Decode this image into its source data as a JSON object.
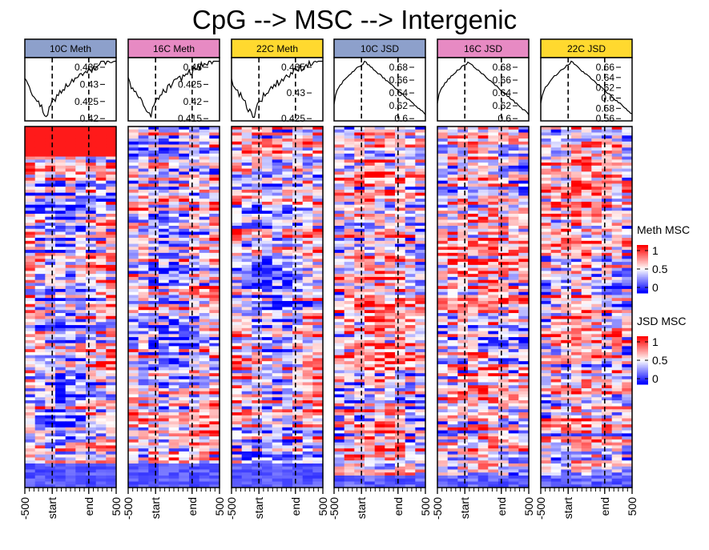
{
  "chart_data": {
    "type": "heatmap",
    "title": "CpG --> MSC --> Intergenic",
    "x_tick_labels": [
      "-500",
      "start",
      "end",
      "500"
    ],
    "panels": [
      {
        "name": "10C Meth",
        "header_color": "#8DA0CB",
        "legend": "Meth MSC",
        "profile_ticks": [
          "0.435",
          "0.43",
          "0.425",
          "0.42"
        ],
        "profile_ylim": [
          0.415,
          0.438
        ]
      },
      {
        "name": "16C Meth",
        "header_color": "#E78AC3",
        "legend": "Meth MSC",
        "profile_ticks": [
          "0.43",
          "0.425",
          "0.42",
          "0.415"
        ],
        "profile_ylim": [
          0.414,
          0.432
        ]
      },
      {
        "name": "22C Meth",
        "header_color": "#FFD92F",
        "legend": "Meth MSC",
        "profile_ticks": [
          "0.435",
          "0.43",
          "0.425"
        ],
        "profile_ylim": [
          0.418,
          0.44
        ]
      },
      {
        "name": "10C JSD",
        "header_color": "#8DA0CB",
        "legend": "JSD MSC",
        "profile_ticks": [
          "0.68",
          "0.66",
          "0.64",
          "0.62",
          "0.6"
        ],
        "profile_ylim": [
          0.585,
          0.69
        ]
      },
      {
        "name": "16C JSD",
        "header_color": "#E78AC3",
        "legend": "JSD MSC",
        "profile_ticks": [
          "0.68",
          "0.66",
          "0.64",
          "0.62",
          "0.6"
        ],
        "profile_ylim": [
          0.59,
          0.685
        ]
      },
      {
        "name": "22C JSD",
        "header_color": "#FFD92F",
        "legend": "JSD MSC",
        "profile_ticks": [
          "0.66",
          "0.64",
          "0.62",
          "0.6",
          "0.58",
          "0.56"
        ],
        "profile_ylim": [
          0.55,
          0.67
        ]
      }
    ],
    "legends": [
      {
        "title": "Meth MSC",
        "ticks": [
          "1",
          "0.5",
          "0"
        ],
        "colors": [
          "#0000FF",
          "#FFFFFF",
          "#FF0000"
        ]
      },
      {
        "title": "JSD MSC",
        "ticks": [
          "1",
          "0.5",
          "0"
        ],
        "colors": [
          "#0000FF",
          "#FFFFFF",
          "#FF0000"
        ]
      }
    ]
  }
}
